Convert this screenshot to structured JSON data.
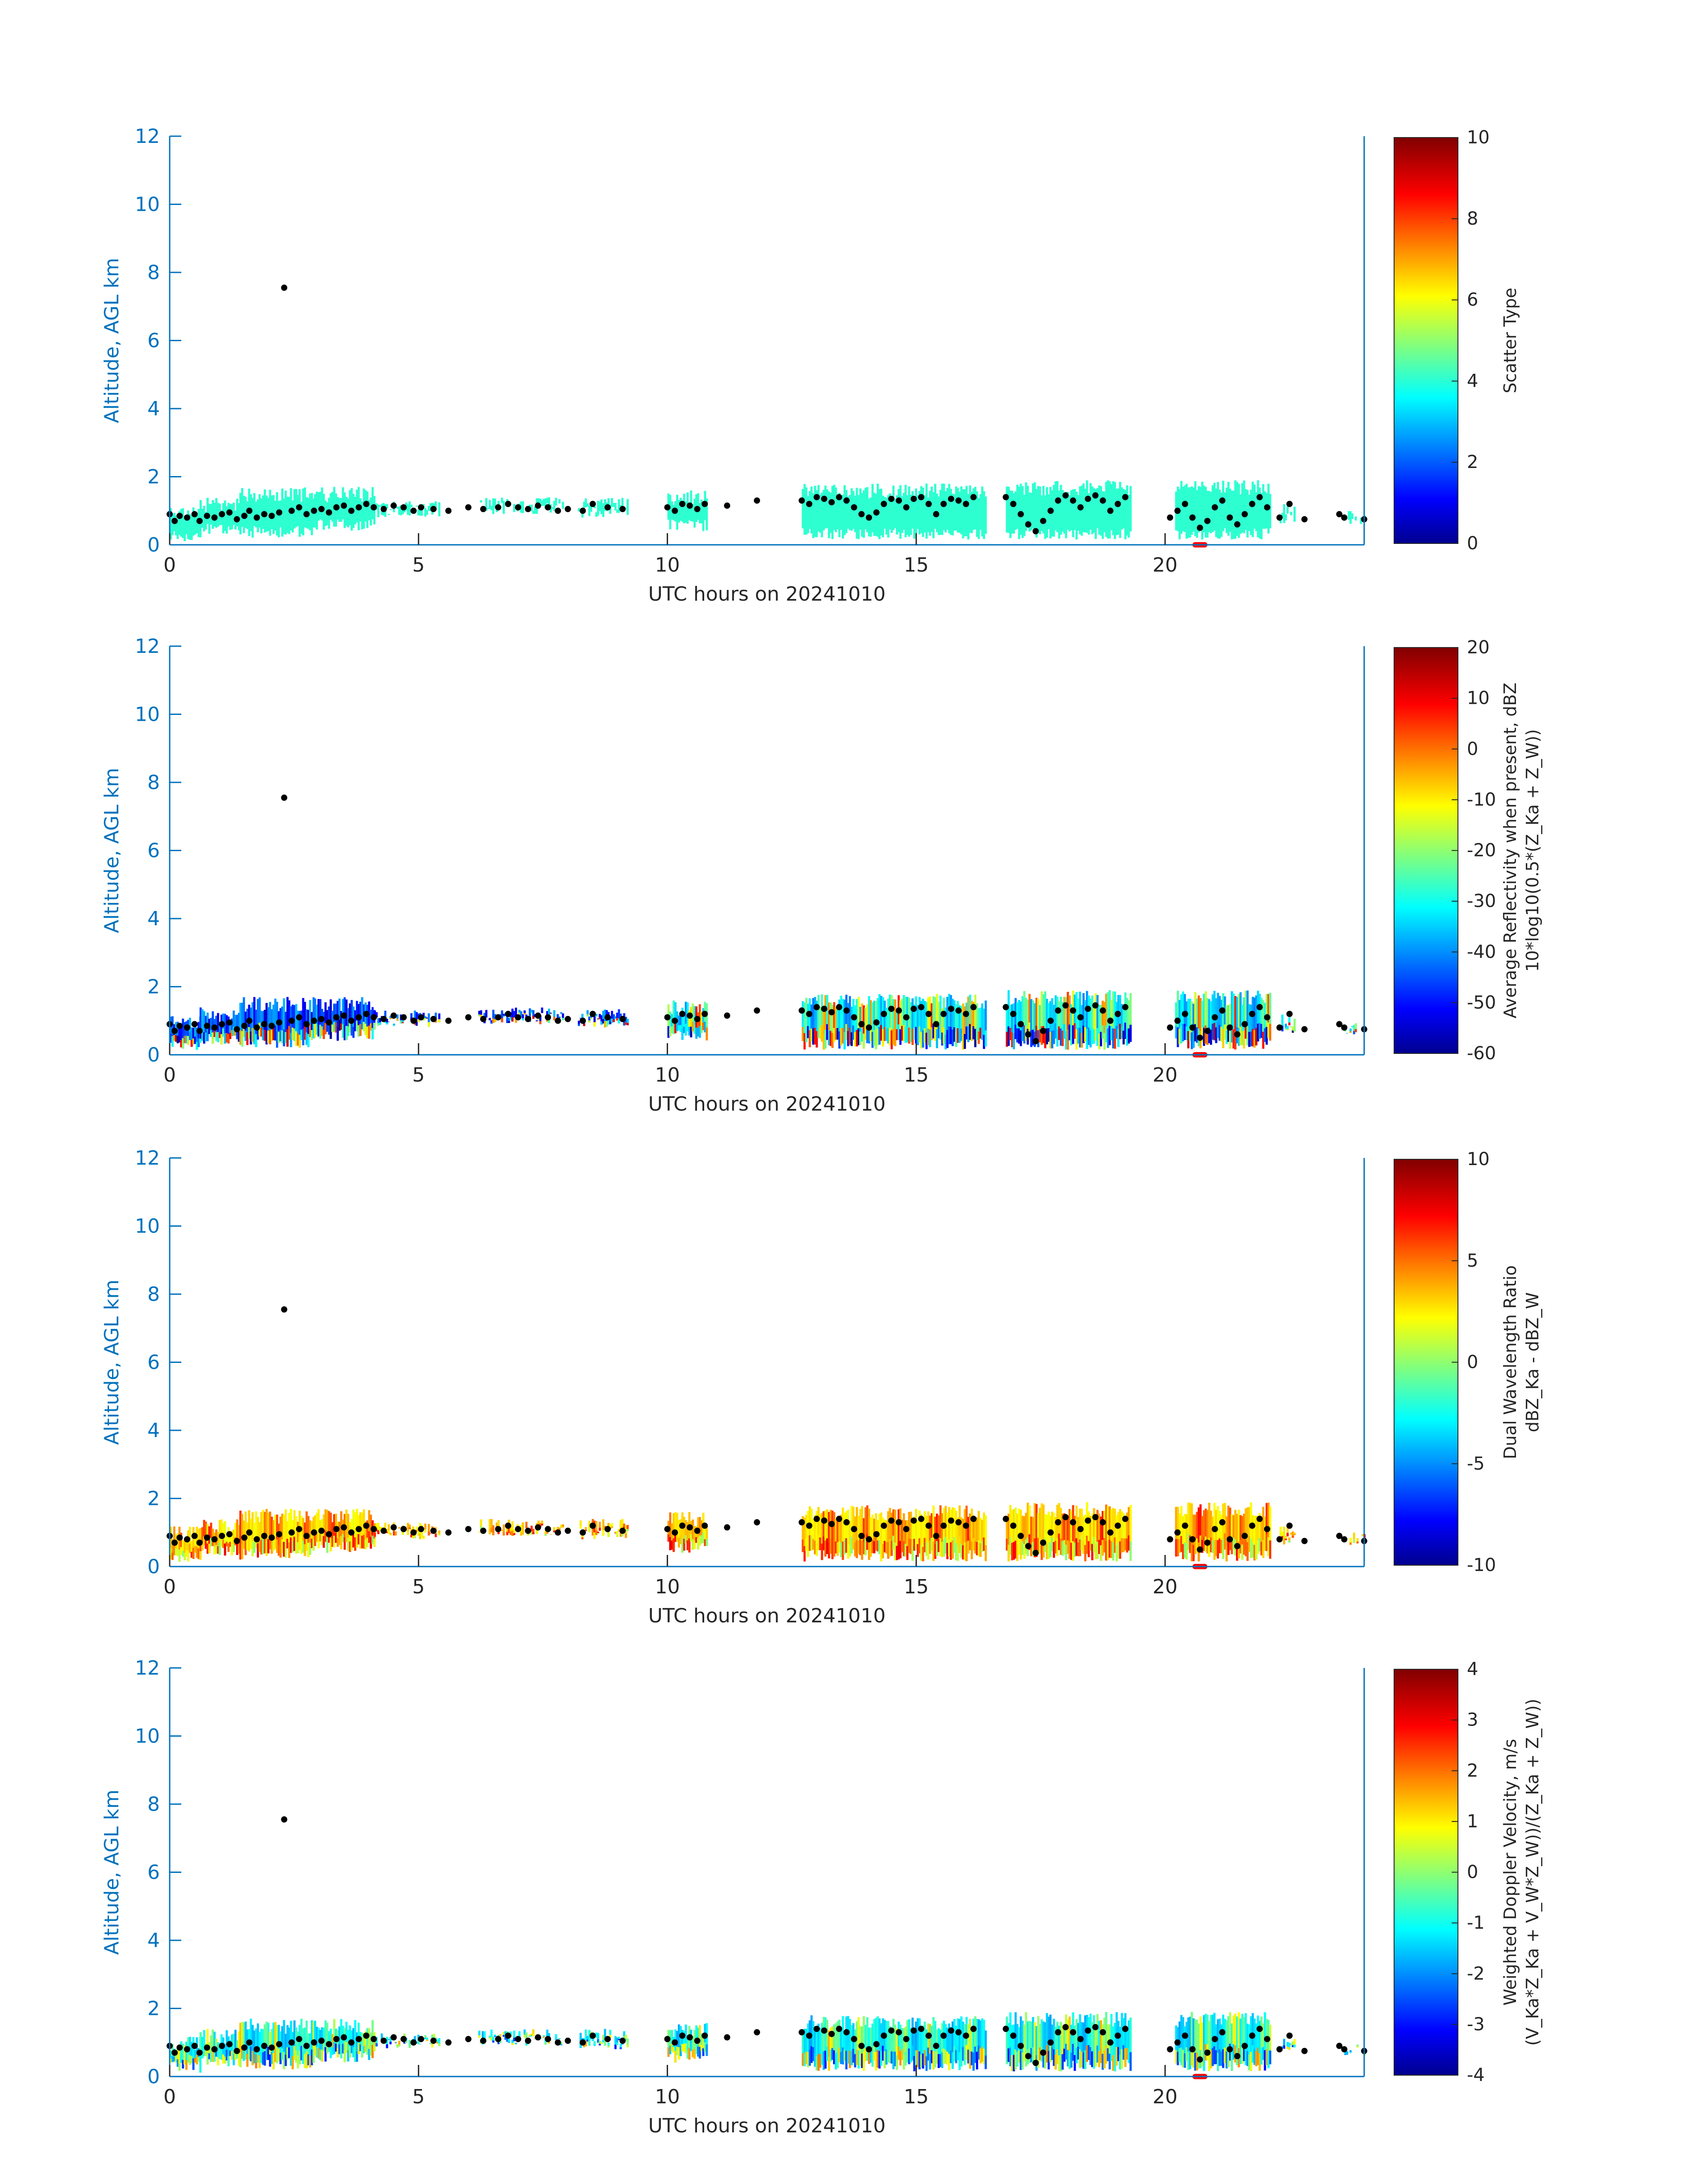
{
  "colors": {
    "axis": "#0072BD",
    "text": "#262626",
    "marker": "#000000",
    "flag": "#ff0000"
  },
  "chart_data": [
    {
      "type": "heatmap",
      "panel": "scatter-type",
      "xlabel": "UTC hours on 20241010",
      "ylabel": "Altitude, AGL km",
      "xlim": [
        0,
        24
      ],
      "ylim": [
        0,
        12
      ],
      "xticks": [
        0,
        5,
        10,
        15,
        20
      ],
      "yticks": [
        0,
        2,
        4,
        6,
        8,
        10,
        12
      ],
      "colorbar": {
        "label_lines": [
          "Scatter Type"
        ],
        "colormap": "jet",
        "clim": [
          0,
          10
        ],
        "ticks": [
          0,
          2,
          4,
          6,
          8,
          10
        ]
      },
      "dominant_value": 4.2,
      "notable_values": [
        9.5
      ],
      "fill_style": "solid"
    },
    {
      "type": "heatmap",
      "panel": "reflectivity",
      "xlabel": "UTC hours on 20241010",
      "ylabel": "Altitude, AGL km",
      "xlim": [
        0,
        24
      ],
      "ylim": [
        0,
        12
      ],
      "xticks": [
        0,
        5,
        10,
        15,
        20
      ],
      "yticks": [
        0,
        2,
        4,
        6,
        8,
        10,
        12
      ],
      "colorbar": {
        "label_lines": [
          "Average Reflectivity when present, dBZ",
          "10*log10(0.5*(Z_Ka + Z_W))"
        ],
        "colormap": "jet",
        "clim": [
          -60,
          20
        ],
        "ticks": [
          -60,
          -50,
          -40,
          -30,
          -20,
          -10,
          0,
          10,
          20
        ]
      },
      "value_range_shown": [
        -60,
        15
      ],
      "fill_style": "stripes"
    },
    {
      "type": "heatmap",
      "panel": "dual-wavelength-ratio",
      "xlabel": "UTC hours on 20241010",
      "ylabel": "Altitude, AGL km",
      "xlim": [
        0,
        24
      ],
      "ylim": [
        0,
        12
      ],
      "xticks": [
        0,
        5,
        10,
        15,
        20
      ],
      "yticks": [
        0,
        2,
        4,
        6,
        8,
        10,
        12
      ],
      "colorbar": {
        "label_lines": [
          "Dual Wavelength Ratio",
          "dBZ_Ka - dBZ_W"
        ],
        "colormap": "jet",
        "clim": [
          -10,
          10
        ],
        "ticks": [
          -10,
          -5,
          0,
          5,
          10
        ]
      },
      "value_range_shown": [
        0,
        8
      ],
      "fill_style": "stripes"
    },
    {
      "type": "heatmap",
      "panel": "doppler-velocity",
      "xlabel": "UTC hours on 20241010",
      "ylabel": "Altitude, AGL km",
      "xlim": [
        0,
        24
      ],
      "ylim": [
        0,
        12
      ],
      "xticks": [
        0,
        5,
        10,
        15,
        20
      ],
      "yticks": [
        0,
        2,
        4,
        6,
        8,
        10,
        12
      ],
      "colorbar": {
        "label_lines": [
          "Weighted Doppler Velocity, m/s",
          "(V_Ka*Z_Ka + V_W*Z_W))/(Z_Ka + Z_W))"
        ],
        "colormap": "jet",
        "clim": [
          -4,
          4
        ],
        "ticks": [
          -4,
          -3,
          -2,
          -1,
          0,
          1,
          2,
          3,
          4
        ]
      },
      "value_range_shown": [
        -3,
        2
      ],
      "fill_style": "stripes"
    }
  ],
  "cloud_segments": [
    {
      "t0": 0.0,
      "t1": 0.6,
      "base": 0.1,
      "top": 1.2
    },
    {
      "t0": 0.6,
      "t1": 1.4,
      "base": 0.3,
      "top": 1.4
    },
    {
      "t0": 1.4,
      "t1": 2.9,
      "base": 0.2,
      "top": 1.7
    },
    {
      "t0": 2.9,
      "t1": 4.1,
      "base": 0.4,
      "top": 1.7
    },
    {
      "t0": 4.1,
      "t1": 5.4,
      "base": 0.8,
      "top": 1.3
    },
    {
      "t0": 6.2,
      "t1": 7.9,
      "base": 0.9,
      "top": 1.4
    },
    {
      "t0": 8.2,
      "t1": 9.2,
      "base": 0.8,
      "top": 1.4
    },
    {
      "t0": 10.0,
      "t1": 10.8,
      "base": 0.4,
      "top": 1.6
    },
    {
      "t0": 12.7,
      "t1": 16.4,
      "base": 0.15,
      "top": 1.8
    },
    {
      "t0": 16.8,
      "t1": 19.3,
      "base": 0.15,
      "top": 1.9
    },
    {
      "t0": 20.2,
      "t1": 22.1,
      "base": 0.15,
      "top": 1.9
    },
    {
      "t0": 22.3,
      "t1": 22.6,
      "base": 0.6,
      "top": 1.2
    },
    {
      "t0": 23.6,
      "t1": 24.0,
      "base": 0.6,
      "top": 1.0
    }
  ],
  "cloud_base_markers": {
    "series": [
      [
        0.0,
        0.9
      ],
      [
        0.1,
        0.7
      ],
      [
        0.2,
        0.85
      ],
      [
        0.35,
        0.8
      ],
      [
        0.5,
        0.9
      ],
      [
        0.6,
        0.7
      ],
      [
        0.75,
        0.85
      ],
      [
        0.9,
        0.8
      ],
      [
        1.05,
        0.9
      ],
      [
        1.2,
        0.95
      ],
      [
        1.35,
        0.75
      ],
      [
        1.5,
        0.85
      ],
      [
        1.6,
        1.0
      ],
      [
        1.75,
        0.8
      ],
      [
        1.9,
        0.9
      ],
      [
        2.05,
        0.85
      ],
      [
        2.2,
        0.95
      ],
      [
        2.3,
        7.55
      ],
      [
        2.45,
        1.0
      ],
      [
        2.6,
        1.1
      ],
      [
        2.75,
        0.9
      ],
      [
        2.9,
        1.0
      ],
      [
        3.05,
        1.05
      ],
      [
        3.2,
        0.95
      ],
      [
        3.35,
        1.1
      ],
      [
        3.5,
        1.15
      ],
      [
        3.65,
        1.0
      ],
      [
        3.8,
        1.1
      ],
      [
        3.95,
        1.2
      ],
      [
        4.1,
        1.1
      ],
      [
        4.3,
        1.05
      ],
      [
        4.5,
        1.15
      ],
      [
        4.7,
        1.1
      ],
      [
        4.9,
        1.0
      ],
      [
        5.05,
        1.1
      ],
      [
        5.3,
        1.05
      ],
      [
        5.6,
        1.0
      ],
      [
        6.0,
        1.1
      ],
      [
        6.3,
        1.05
      ],
      [
        6.6,
        1.1
      ],
      [
        6.8,
        1.2
      ],
      [
        7.0,
        1.1
      ],
      [
        7.2,
        1.05
      ],
      [
        7.4,
        1.15
      ],
      [
        7.6,
        1.1
      ],
      [
        7.8,
        1.0
      ],
      [
        8.0,
        1.05
      ],
      [
        8.3,
        1.0
      ],
      [
        8.5,
        1.2
      ],
      [
        8.8,
        1.1
      ],
      [
        9.1,
        1.05
      ],
      [
        10.0,
        1.1
      ],
      [
        10.15,
        1.0
      ],
      [
        10.3,
        1.2
      ],
      [
        10.45,
        1.15
      ],
      [
        10.6,
        1.05
      ],
      [
        10.75,
        1.2
      ],
      [
        11.2,
        1.15
      ],
      [
        11.8,
        1.3
      ],
      [
        12.7,
        1.3
      ],
      [
        12.85,
        1.2
      ],
      [
        13.0,
        1.4
      ],
      [
        13.15,
        1.35
      ],
      [
        13.3,
        1.25
      ],
      [
        13.45,
        1.4
      ],
      [
        13.6,
        1.3
      ],
      [
        13.75,
        1.1
      ],
      [
        13.9,
        0.9
      ],
      [
        14.05,
        0.8
      ],
      [
        14.2,
        0.95
      ],
      [
        14.35,
        1.2
      ],
      [
        14.5,
        1.35
      ],
      [
        14.65,
        1.3
      ],
      [
        14.8,
        1.1
      ],
      [
        14.95,
        1.35
      ],
      [
        15.1,
        1.4
      ],
      [
        15.25,
        1.2
      ],
      [
        15.4,
        0.9
      ],
      [
        15.55,
        1.2
      ],
      [
        15.7,
        1.35
      ],
      [
        15.85,
        1.3
      ],
      [
        16.0,
        1.2
      ],
      [
        16.15,
        1.4
      ],
      [
        16.8,
        1.4
      ],
      [
        16.95,
        1.2
      ],
      [
        17.1,
        0.9
      ],
      [
        17.25,
        0.6
      ],
      [
        17.4,
        0.4
      ],
      [
        17.55,
        0.7
      ],
      [
        17.7,
        1.0
      ],
      [
        17.85,
        1.3
      ],
      [
        18.0,
        1.45
      ],
      [
        18.15,
        1.3
      ],
      [
        18.3,
        1.1
      ],
      [
        18.45,
        1.35
      ],
      [
        18.6,
        1.45
      ],
      [
        18.75,
        1.3
      ],
      [
        18.9,
        1.0
      ],
      [
        19.05,
        1.2
      ],
      [
        19.2,
        1.4
      ],
      [
        20.1,
        0.8
      ],
      [
        20.25,
        1.0
      ],
      [
        20.4,
        1.2
      ],
      [
        20.55,
        0.8
      ],
      [
        20.7,
        0.5
      ],
      [
        20.85,
        0.7
      ],
      [
        21.0,
        1.1
      ],
      [
        21.15,
        1.3
      ],
      [
        21.3,
        0.8
      ],
      [
        21.45,
        0.6
      ],
      [
        21.6,
        0.9
      ],
      [
        21.75,
        1.2
      ],
      [
        21.9,
        1.4
      ],
      [
        22.05,
        1.1
      ],
      [
        22.3,
        0.8
      ],
      [
        22.5,
        1.2
      ],
      [
        22.8,
        0.75
      ],
      [
        23.5,
        0.9
      ],
      [
        23.6,
        0.8
      ],
      [
        24.0,
        0.75
      ]
    ]
  },
  "time_flag": {
    "t0": 20.55,
    "t1": 20.85
  }
}
